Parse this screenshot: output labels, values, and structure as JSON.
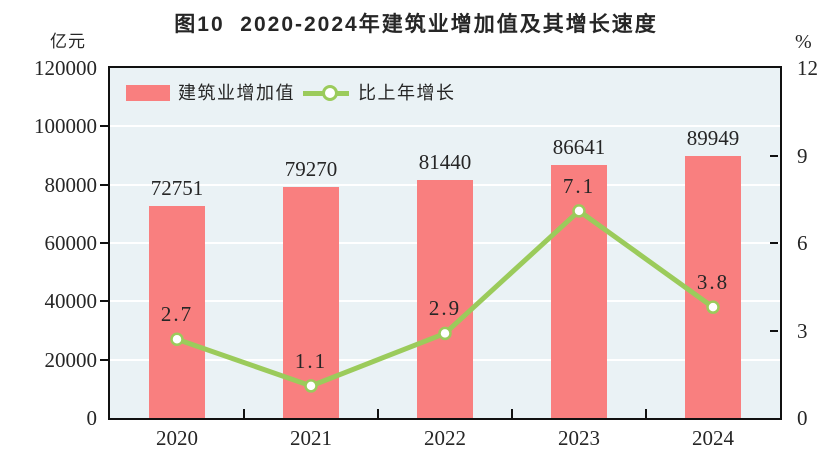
{
  "title": "图10  2020-2024年建筑业增加值及其增长速度",
  "axes": {
    "left_unit": "亿元",
    "right_unit": "%",
    "x_categories": [
      "2020",
      "2021",
      "2022",
      "2023",
      "2024"
    ]
  },
  "legend": {
    "items": [
      {
        "label": "建筑业增加值",
        "swatch": "bar"
      },
      {
        "label": "比上年增长",
        "swatch": "line"
      }
    ]
  },
  "colors": {
    "bar": "#F97F7F",
    "line": "#9BCB5B",
    "marker_fill": "#FFFFFF",
    "plot_bg": "#EAF2F5",
    "grid": "#FFFFFF",
    "axis": "#111111",
    "text": "#262626"
  },
  "chart_data": [
    {
      "type": "bar",
      "name": "建筑业增加值",
      "categories": [
        "2020",
        "2021",
        "2022",
        "2023",
        "2024"
      ],
      "values": [
        72751,
        79270,
        81440,
        86641,
        89949
      ],
      "value_labels": [
        "72751",
        "79270",
        "81440",
        "86641",
        "89949"
      ],
      "axis": "left",
      "ylabel_unit": "亿元",
      "ylim": [
        0,
        120000
      ],
      "yticks": [
        0,
        20000,
        40000,
        60000,
        80000,
        100000,
        120000
      ],
      "legend_position": "top-left-inside",
      "grid": true
    },
    {
      "type": "line",
      "name": "比上年增长",
      "categories": [
        "2020",
        "2021",
        "2022",
        "2023",
        "2024"
      ],
      "values": [
        2.7,
        1.1,
        2.9,
        7.1,
        3.8
      ],
      "value_labels": [
        "2.7",
        "1.1",
        "2.9",
        "7.1",
        "3.8"
      ],
      "axis": "right",
      "ylabel_unit": "%",
      "ylim": [
        0,
        12
      ],
      "yticks": [
        0,
        3,
        6,
        9,
        12
      ]
    }
  ]
}
